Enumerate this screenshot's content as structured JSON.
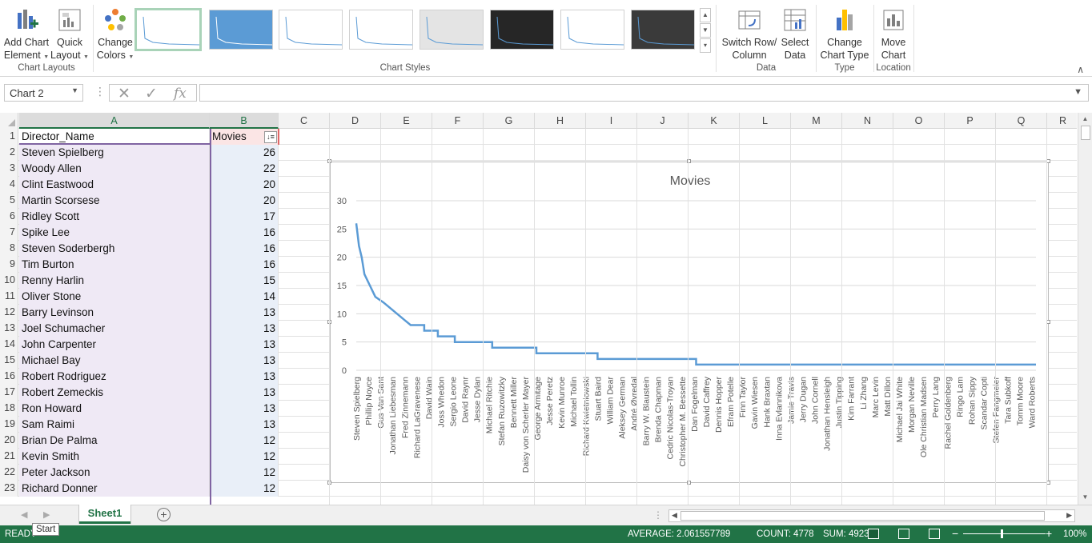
{
  "ribbon": {
    "add_chart_element": "Add Chart\nElement",
    "add_chart_element_l1": "Add Chart",
    "add_chart_element_l2": "Element",
    "quick_layout_l1": "Quick",
    "quick_layout_l2": "Layout",
    "change_colors_l1": "Change",
    "change_colors_l2": "Colors",
    "switch_row_l1": "Switch Row/",
    "switch_row_l2": "Column",
    "select_data_l1": "Select",
    "select_data_l2": "Data",
    "change_type_l1": "Change",
    "change_type_l2": "Chart Type",
    "move_chart_l1": "Move",
    "move_chart_l2": "Chart",
    "groups": {
      "chart_layouts": "Chart Layouts",
      "chart_styles": "Chart Styles",
      "data": "Data",
      "type": "Type",
      "location": "Location"
    }
  },
  "formula_bar": {
    "name_box": "Chart 2",
    "fx": "fx",
    "formula": ""
  },
  "columns": [
    "A",
    "B",
    "C",
    "D",
    "E",
    "F",
    "G",
    "H",
    "I",
    "J",
    "K",
    "L",
    "M",
    "N",
    "O",
    "P",
    "Q",
    "R"
  ],
  "table": {
    "header_a": "Director_Name",
    "header_b": "Movies",
    "rows": [
      {
        "n": "1"
      },
      {
        "n": "2",
        "a": "Steven Spielberg",
        "b": "26"
      },
      {
        "n": "3",
        "a": "Woody Allen",
        "b": "22"
      },
      {
        "n": "4",
        "a": "Clint Eastwood",
        "b": "20"
      },
      {
        "n": "5",
        "a": "Martin Scorsese",
        "b": "20"
      },
      {
        "n": "6",
        "a": "Ridley Scott",
        "b": "17"
      },
      {
        "n": "7",
        "a": "Spike Lee",
        "b": "16"
      },
      {
        "n": "8",
        "a": "Steven Soderbergh",
        "b": "16"
      },
      {
        "n": "9",
        "a": "Tim Burton",
        "b": "16"
      },
      {
        "n": "10",
        "a": "Renny Harlin",
        "b": "15"
      },
      {
        "n": "11",
        "a": "Oliver Stone",
        "b": "14"
      },
      {
        "n": "12",
        "a": "Barry Levinson",
        "b": "13"
      },
      {
        "n": "13",
        "a": "Joel Schumacher",
        "b": "13"
      },
      {
        "n": "14",
        "a": "John Carpenter",
        "b": "13"
      },
      {
        "n": "15",
        "a": "Michael Bay",
        "b": "13"
      },
      {
        "n": "16",
        "a": "Robert Rodriguez",
        "b": "13"
      },
      {
        "n": "17",
        "a": "Robert Zemeckis",
        "b": "13"
      },
      {
        "n": "18",
        "a": "Ron Howard",
        "b": "13"
      },
      {
        "n": "19",
        "a": "Sam Raimi",
        "b": "13"
      },
      {
        "n": "20",
        "a": "Brian De Palma",
        "b": "12"
      },
      {
        "n": "21",
        "a": "Kevin Smith",
        "b": "12"
      },
      {
        "n": "22",
        "a": "Peter Jackson",
        "b": "12"
      },
      {
        "n": "23",
        "a": "Richard Donner",
        "b": "12"
      }
    ]
  },
  "chart_data": {
    "type": "line",
    "title": "Movies",
    "ylim": [
      0,
      30
    ],
    "yticks": [
      "0",
      "5",
      "10",
      "15",
      "20",
      "25",
      "30"
    ],
    "grid": true,
    "legend": "none",
    "line_color": "#5b9bd5",
    "x": [
      "Steven Spielberg",
      "Phillip Noyce",
      "Gus Van Sant",
      "Jonathan Liebesman",
      "Fred Zinnemann",
      "Richard LaGravenese",
      "David Wain",
      "Joss Whedon",
      "Sergio Leone",
      "David Raynr",
      "Jesse Dylan",
      "Michael Ritchie",
      "Stefan Ruzowitzky",
      "Bennett Miller",
      "Daisy von Scherler Mayer",
      "George Armitage",
      "Jesse Peretz",
      "Kevin Munroe",
      "Michael Tollin",
      "Richard Kwietniowski",
      "Stuart Baird",
      "William Dear",
      "Aleksey German",
      "André Øvredal",
      "Barry W. Blaustein",
      "Brenda Chapman",
      "Cedric Nicolas-Troyan",
      "Christopher M. Bessette",
      "Dan Fogelman",
      "David Caffrey",
      "Dennis Hopper",
      "Efram Potelle",
      "Finn Taylor",
      "Gavin Wiesen",
      "Hank Braxtan",
      "Inna Evlannikova",
      "Jamie Travis",
      "Jerry Dugan",
      "John Cornell",
      "Jonathan Hensleigh",
      "Justin Tipping",
      "Kim Farrant",
      "Li Zhang",
      "Marc Levin",
      "Matt Dillon",
      "Michael Jai White",
      "Morgan Neville",
      "Ole Christian Madsen",
      "Perry Lang",
      "Rachel Goldenberg",
      "Ringo Lam",
      "Rohan Sippy",
      "Scandar Copti",
      "Stefen Fangmeier",
      "Tara Subkoff",
      "Tomm Moore",
      "Ward Roberts"
    ],
    "curve": [
      [
        0,
        26
      ],
      [
        0.004,
        22
      ],
      [
        0.008,
        20
      ],
      [
        0.012,
        17
      ],
      [
        0.016,
        16
      ],
      [
        0.02,
        15
      ],
      [
        0.024,
        14
      ],
      [
        0.028,
        13
      ],
      [
        0.04,
        12
      ],
      [
        0.05,
        11
      ],
      [
        0.06,
        10
      ],
      [
        0.07,
        9
      ],
      [
        0.08,
        8
      ],
      [
        0.1,
        8
      ],
      [
        0.1,
        7
      ],
      [
        0.12,
        7
      ],
      [
        0.12,
        6
      ],
      [
        0.145,
        6
      ],
      [
        0.145,
        5
      ],
      [
        0.2,
        5
      ],
      [
        0.2,
        4
      ],
      [
        0.265,
        4
      ],
      [
        0.265,
        3
      ],
      [
        0.355,
        3
      ],
      [
        0.355,
        2
      ],
      [
        0.5,
        2
      ],
      [
        0.5,
        1
      ],
      [
        1,
        1
      ]
    ]
  },
  "sheet": {
    "tab": "Sheet1",
    "add": "+"
  },
  "status": {
    "ready": "READY",
    "tooltip": "Start",
    "average": "AVERAGE: 2.061557789",
    "count": "COUNT: 4778",
    "sum": "SUM: 4923",
    "zoom": "100%"
  }
}
